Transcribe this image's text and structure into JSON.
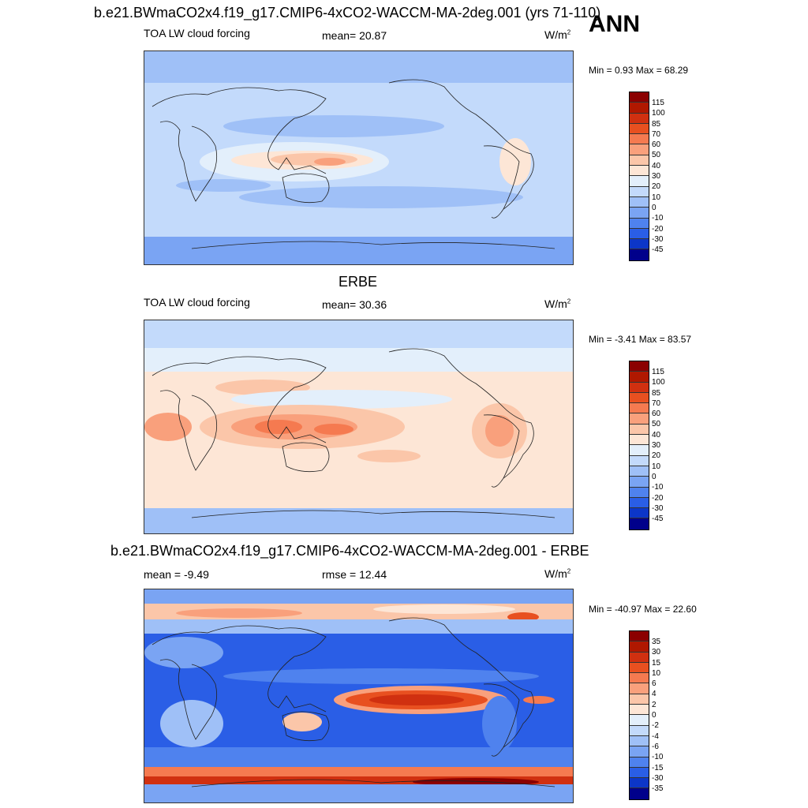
{
  "title": "ANN",
  "panels": [
    {
      "heading": "b.e21.BWmaCO2x4.f19_g17.CMIP6-4xCO2-WACCM-MA-2deg.001 (yrs 71-110)",
      "left_label": "TOA LW cloud forcing",
      "center_label": "mean=  20.87",
      "units": "W/m",
      "units_sup": "2",
      "minmax": "Min =   0.93 Max =  68.29",
      "colorbar": {
        "labels": [
          "115",
          "100",
          "85",
          "70",
          "60",
          "50",
          "40",
          "30",
          "20",
          "10",
          "0",
          "-10",
          "-20",
          "-30",
          "-45"
        ],
        "colors": [
          "#8b0000",
          "#b01800",
          "#d03010",
          "#e85020",
          "#f57a50",
          "#f9a07c",
          "#fbc6a9",
          "#fde6d6",
          "#e3effb",
          "#c3dafb",
          "#9fc0f7",
          "#7aa4f3",
          "#4f82ee",
          "#2a5ee6",
          "#0c36c8",
          "#00008b"
        ]
      }
    },
    {
      "heading": "ERBE",
      "left_label": "TOA LW cloud forcing",
      "center_label": "mean=  30.36",
      "units": "W/m",
      "units_sup": "2",
      "minmax": "Min =  -3.41 Max =  83.57",
      "colorbar": {
        "labels": [
          "115",
          "100",
          "85",
          "70",
          "60",
          "50",
          "40",
          "30",
          "20",
          "10",
          "0",
          "-10",
          "-20",
          "-30",
          "-45"
        ],
        "colors": [
          "#8b0000",
          "#b01800",
          "#d03010",
          "#e85020",
          "#f57a50",
          "#f9a07c",
          "#fbc6a9",
          "#fde6d6",
          "#e3effb",
          "#c3dafb",
          "#9fc0f7",
          "#7aa4f3",
          "#4f82ee",
          "#2a5ee6",
          "#0c36c8",
          "#00008b"
        ]
      }
    },
    {
      "heading": "b.e21.BWmaCO2x4.f19_g17.CMIP6-4xCO2-WACCM-MA-2deg.001 - ERBE",
      "left_label": "mean =  -9.49",
      "center_label": "rmse =  12.44",
      "units": "W/m",
      "units_sup": "2",
      "minmax": "Min = -40.97 Max =  22.60",
      "colorbar": {
        "labels": [
          "35",
          "30",
          "15",
          "10",
          "6",
          "4",
          "2",
          "0",
          "-2",
          "-4",
          "-6",
          "-10",
          "-15",
          "-30",
          "-35"
        ],
        "colors": [
          "#8b0000",
          "#b01800",
          "#d03010",
          "#e85020",
          "#f57a50",
          "#f9a07c",
          "#fbc6a9",
          "#fde6d6",
          "#e3effb",
          "#c3dafb",
          "#9fc0f7",
          "#7aa4f3",
          "#4f82ee",
          "#2a5ee6",
          "#0c36c8",
          "#00008b"
        ]
      }
    }
  ]
}
